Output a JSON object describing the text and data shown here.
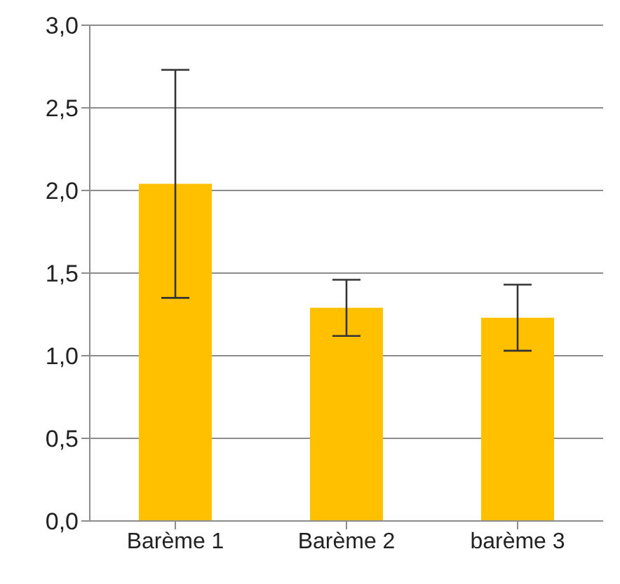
{
  "chart_data": {
    "type": "bar",
    "categories": [
      "Barème 1",
      "Barème 2",
      "barème 3"
    ],
    "values": [
      2.04,
      1.29,
      1.23
    ],
    "errors": [
      0.69,
      0.17,
      0.2
    ],
    "color": "#ffc000",
    "ylim": [
      0,
      3
    ],
    "yticks": [
      {
        "value": 0,
        "label": "0,0"
      },
      {
        "value": 0.5,
        "label": "0,5"
      },
      {
        "value": 1,
        "label": "1,0"
      },
      {
        "value": 1.5,
        "label": "1,5"
      },
      {
        "value": 2,
        "label": "2,0"
      },
      {
        "value": 2.5,
        "label": "2,5"
      },
      {
        "value": 3,
        "label": "3,0"
      }
    ],
    "grid": "y"
  }
}
